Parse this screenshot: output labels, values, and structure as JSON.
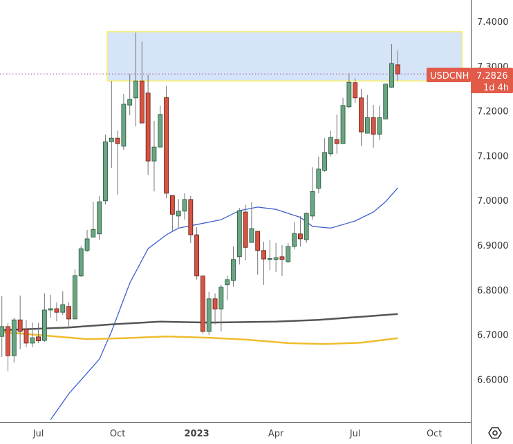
{
  "chart_data": {
    "type": "candlestick",
    "symbol": "USDCNH",
    "last_price": "7.2826",
    "countdown": "1d 4h",
    "ylim": [
      6.52,
      7.44
    ],
    "y_ticks": [
      "7.4000",
      "7.3000",
      "7.2000",
      "7.1000",
      "7.0000",
      "6.9000",
      "6.8000",
      "6.7000",
      "6.6000"
    ],
    "x_ticks": [
      {
        "label": "Jul",
        "date": "2022-07-04",
        "bold": false
      },
      {
        "label": "Oct",
        "date": "2022-10-03",
        "bold": false
      },
      {
        "label": "2023",
        "date": "2023-01-02",
        "bold": true
      },
      {
        "label": "Apr",
        "date": "2023-04-03",
        "bold": false
      },
      {
        "label": "Jul",
        "date": "2023-07-03",
        "bold": false
      },
      {
        "label": "Oct",
        "date": "2023-10-02",
        "bold": false
      }
    ],
    "colors": {
      "up": "#6ba583",
      "up_border": "#225437",
      "down": "#d75442",
      "down_border": "#5b1a13",
      "wick": "#737375",
      "ma_fast": "#3d5fd1",
      "ma_mid": "#555555",
      "ma_slow": "#f0bc2e",
      "zone_fill": "#d6e4f8",
      "zone_border": "#f5ef8a",
      "label_bg": "#e25a48"
    },
    "zone": {
      "price_top": 7.377,
      "price_bottom": 7.267,
      "start": "2022-09-21",
      "end": "2023-11-03"
    },
    "dates": [
      "2022-05-23",
      "2022-05-30",
      "2022-06-06",
      "2022-06-13",
      "2022-06-20",
      "2022-06-27",
      "2022-07-04",
      "2022-07-11",
      "2022-07-18",
      "2022-07-25",
      "2022-08-01",
      "2022-08-08",
      "2022-08-15",
      "2022-08-22",
      "2022-08-29",
      "2022-09-05",
      "2022-09-12",
      "2022-09-19",
      "2022-09-26",
      "2022-10-03",
      "2022-10-10",
      "2022-10-17",
      "2022-10-24",
      "2022-10-31",
      "2022-11-07",
      "2022-11-14",
      "2022-11-21",
      "2022-11-28",
      "2022-12-05",
      "2022-12-12",
      "2022-12-19",
      "2022-12-26",
      "2023-01-02",
      "2023-01-09",
      "2023-01-16",
      "2023-01-23",
      "2023-01-30",
      "2023-02-06",
      "2023-02-13",
      "2023-02-20",
      "2023-02-27",
      "2023-03-06",
      "2023-03-13",
      "2023-03-20",
      "2023-03-27",
      "2023-04-03",
      "2023-04-10",
      "2023-04-17",
      "2023-04-24",
      "2023-05-01",
      "2023-05-08",
      "2023-05-15",
      "2023-05-22",
      "2023-05-29",
      "2023-06-05",
      "2023-06-12",
      "2023-06-19",
      "2023-06-26",
      "2023-07-03",
      "2023-07-10",
      "2023-07-17",
      "2023-07-24",
      "2023-07-31",
      "2023-08-07",
      "2023-08-14",
      "2023-08-21"
    ],
    "ohlc": [
      [
        6.696,
        6.786,
        6.65,
        6.718
      ],
      [
        6.718,
        6.726,
        6.618,
        6.653
      ],
      [
        6.653,
        6.738,
        6.638,
        6.733
      ],
      [
        6.733,
        6.787,
        6.667,
        6.707
      ],
      [
        6.712,
        6.733,
        6.672,
        6.681
      ],
      [
        6.681,
        6.727,
        6.672,
        6.693
      ],
      [
        6.695,
        6.726,
        6.681,
        6.686
      ],
      [
        6.687,
        6.792,
        6.684,
        6.755
      ],
      [
        6.755,
        6.789,
        6.738,
        6.758
      ],
      [
        6.758,
        6.772,
        6.73,
        6.75
      ],
      [
        6.75,
        6.797,
        6.744,
        6.767
      ],
      [
        6.763,
        6.772,
        6.718,
        6.735
      ],
      [
        6.735,
        6.846,
        6.735,
        6.832
      ],
      [
        6.831,
        6.898,
        6.829,
        6.892
      ],
      [
        6.888,
        6.934,
        6.885,
        6.914
      ],
      [
        6.918,
        6.997,
        6.918,
        6.935
      ],
      [
        6.925,
        7.01,
        6.912,
        6.997
      ],
      [
        6.999,
        7.147,
        6.991,
        7.131
      ],
      [
        7.131,
        7.267,
        7.073,
        7.139
      ],
      [
        7.139,
        7.156,
        7.013,
        7.127
      ],
      [
        7.121,
        7.238,
        7.113,
        7.215
      ],
      [
        7.213,
        7.283,
        7.19,
        7.226
      ],
      [
        7.229,
        7.375,
        7.165,
        7.267
      ],
      [
        7.267,
        7.355,
        7.173,
        7.173
      ],
      [
        7.24,
        7.281,
        7.057,
        7.088
      ],
      [
        7.088,
        7.178,
        7.02,
        7.119
      ],
      [
        7.119,
        7.212,
        7.119,
        7.192
      ],
      [
        7.23,
        7.256,
        7.005,
        7.016
      ],
      [
        7.011,
        7.011,
        6.931,
        6.969
      ],
      [
        6.965,
        7.003,
        6.939,
        6.976
      ],
      [
        6.976,
        7.016,
        6.957,
        7.002
      ],
      [
        7.002,
        7.01,
        6.905,
        6.923
      ],
      [
        6.923,
        6.94,
        6.823,
        6.831
      ],
      [
        6.831,
        6.831,
        6.702,
        6.707
      ],
      [
        6.707,
        6.795,
        6.699,
        6.78
      ],
      [
        6.78,
        6.792,
        6.723,
        6.757
      ],
      [
        6.757,
        6.811,
        6.707,
        6.806
      ],
      [
        6.811,
        6.832,
        6.777,
        6.823
      ],
      [
        6.821,
        6.897,
        6.807,
        6.868
      ],
      [
        6.874,
        6.983,
        6.857,
        6.977
      ],
      [
        6.974,
        6.99,
        6.866,
        6.895
      ],
      [
        6.906,
        6.996,
        6.906,
        6.937
      ],
      [
        6.931,
        6.931,
        6.834,
        6.888
      ],
      [
        6.888,
        6.908,
        6.811,
        6.869
      ],
      [
        6.869,
        6.912,
        6.844,
        6.87
      ],
      [
        6.868,
        6.905,
        6.84,
        6.872
      ],
      [
        6.874,
        6.9,
        6.831,
        6.868
      ],
      [
        6.863,
        6.905,
        6.86,
        6.897
      ],
      [
        6.897,
        6.951,
        6.891,
        6.926
      ],
      [
        6.925,
        6.965,
        6.897,
        6.914
      ],
      [
        6.912,
        6.973,
        6.905,
        6.971
      ],
      [
        6.965,
        7.074,
        6.957,
        7.02
      ],
      [
        7.027,
        7.098,
        7.016,
        7.07
      ],
      [
        7.067,
        7.139,
        7.064,
        7.107
      ],
      [
        7.104,
        7.156,
        7.098,
        7.141
      ],
      [
        7.136,
        7.192,
        7.104,
        7.127
      ],
      [
        7.127,
        7.229,
        7.127,
        7.212
      ],
      [
        7.209,
        7.284,
        7.206,
        7.264
      ],
      [
        7.263,
        7.273,
        7.218,
        7.229
      ],
      [
        7.229,
        7.249,
        7.122,
        7.153
      ],
      [
        7.15,
        7.236,
        7.15,
        7.185
      ],
      [
        7.185,
        7.213,
        7.118,
        7.148
      ],
      [
        7.148,
        7.212,
        7.135,
        7.185
      ],
      [
        7.182,
        7.26,
        7.182,
        7.26
      ],
      [
        7.253,
        7.349,
        7.252,
        7.306
      ],
      [
        7.303,
        7.335,
        7.267,
        7.2826
      ]
    ],
    "moving_averages": [
      {
        "key": "ma_fast",
        "points": [
          [
            "2022-07-18",
            6.51
          ],
          [
            "2022-08-08",
            6.568
          ],
          [
            "2022-09-12",
            6.645
          ],
          [
            "2022-09-26",
            6.707
          ],
          [
            "2022-10-17",
            6.815
          ],
          [
            "2022-11-07",
            6.892
          ],
          [
            "2022-11-28",
            6.923
          ],
          [
            "2022-12-12",
            6.938
          ],
          [
            "2023-01-02",
            6.946
          ],
          [
            "2023-01-30",
            6.957
          ],
          [
            "2023-02-20",
            6.977
          ],
          [
            "2023-03-13",
            6.985
          ],
          [
            "2023-04-03",
            6.98
          ],
          [
            "2023-05-01",
            6.962
          ],
          [
            "2023-05-15",
            6.942
          ],
          [
            "2023-06-05",
            6.938
          ],
          [
            "2023-07-03",
            6.954
          ],
          [
            "2023-07-24",
            6.974
          ],
          [
            "2023-08-07",
            6.997
          ],
          [
            "2023-08-21",
            7.028
          ]
        ]
      },
      {
        "key": "ma_mid",
        "points": [
          [
            "2022-05-23",
            6.71
          ],
          [
            "2022-08-08",
            6.716
          ],
          [
            "2022-09-26",
            6.723
          ],
          [
            "2022-11-21",
            6.729
          ],
          [
            "2023-01-16",
            6.727
          ],
          [
            "2023-04-03",
            6.729
          ],
          [
            "2023-05-22",
            6.733
          ],
          [
            "2023-07-10",
            6.74
          ],
          [
            "2023-08-21",
            6.746
          ]
        ]
      },
      {
        "key": "ma_slow",
        "points": [
          [
            "2022-05-23",
            6.706
          ],
          [
            "2022-07-11",
            6.698
          ],
          [
            "2022-08-29",
            6.69
          ],
          [
            "2022-10-10",
            6.692
          ],
          [
            "2022-11-28",
            6.696
          ],
          [
            "2023-01-16",
            6.693
          ],
          [
            "2023-02-27",
            6.689
          ],
          [
            "2023-04-17",
            6.681
          ],
          [
            "2023-05-29",
            6.679
          ],
          [
            "2023-07-10",
            6.682
          ],
          [
            "2023-08-21",
            6.692
          ]
        ]
      }
    ]
  },
  "settings_icon": "hexagon-gear-icon"
}
